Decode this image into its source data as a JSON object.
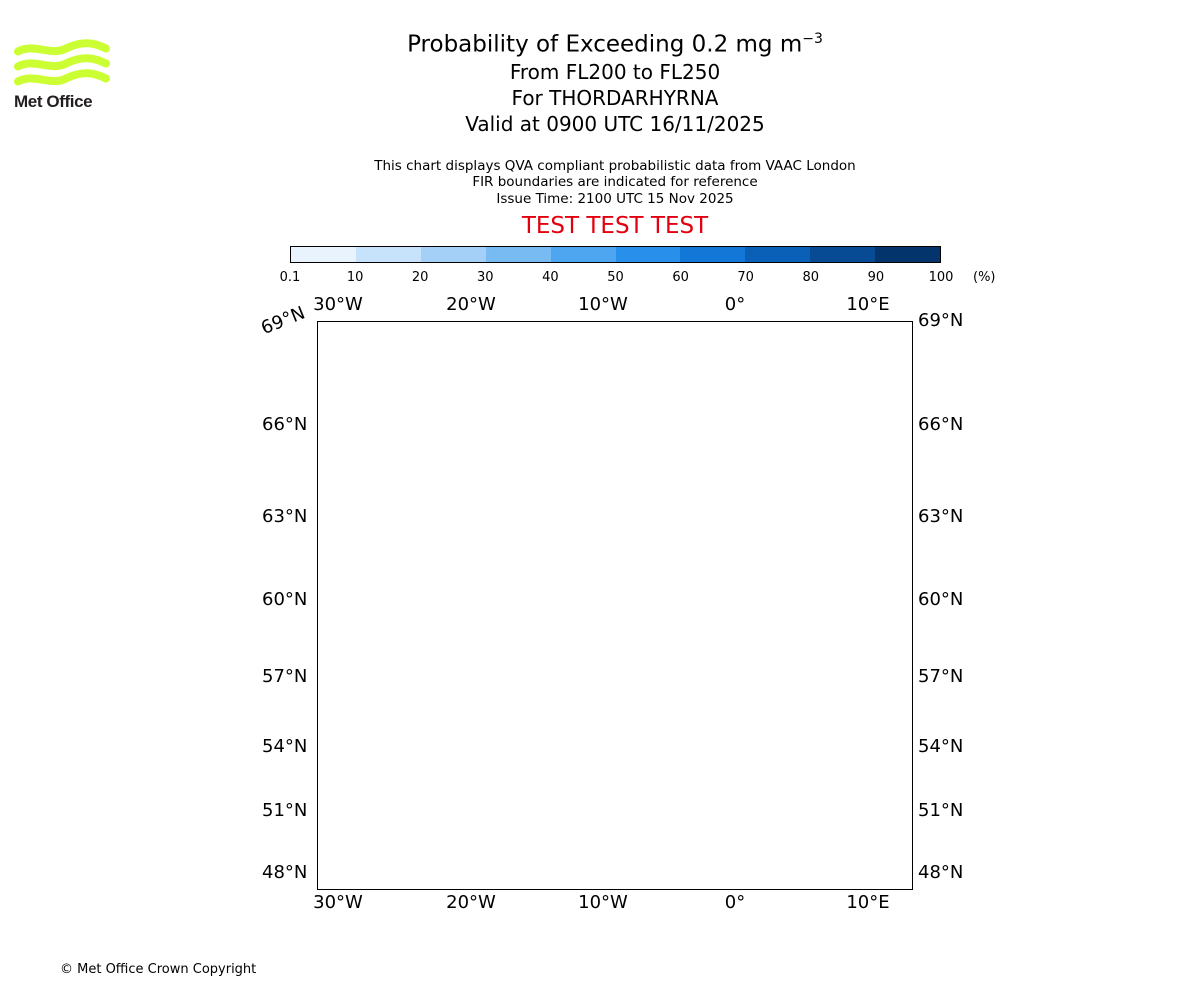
{
  "logo": {
    "text": "Met Office",
    "color": "#ccff33"
  },
  "header": {
    "title_prefix": "Probability of Exceeding 0.2 mg m",
    "title_exponent": "−3",
    "level_range": "From FL200 to FL250",
    "volcano": "For THORDARHYRNA",
    "valid_time": "Valid at 0900 UTC 16/11/2025"
  },
  "notes": {
    "line1": "This chart displays QVA compliant probabilistic data from VAAC London",
    "line2": "FIR boundaries are indicated for reference",
    "line3": "Issue Time: 2100 UTC 15 Nov 2025"
  },
  "test_banner": {
    "text": "TEST TEST TEST",
    "color": "#e2000f"
  },
  "colorbar": {
    "ticks": [
      "0.1",
      "10",
      "20",
      "30",
      "40",
      "50",
      "60",
      "70",
      "80",
      "90",
      "100"
    ],
    "unit": "(%)",
    "colors": [
      "#e8f3fd",
      "#c7e2fb",
      "#a4d0f7",
      "#78bbf3",
      "#4ea6f0",
      "#2890eb",
      "#1277d6",
      "#0a60b6",
      "#064b93",
      "#03346c"
    ]
  },
  "map": {
    "lon_labels": [
      "30°W",
      "20°W",
      "10°W",
      "0°",
      "10°E"
    ],
    "lat_labels_left": [
      "66°N",
      "63°N",
      "60°N",
      "57°N",
      "54°N",
      "51°N",
      "48°N"
    ],
    "lat_labels_right": [
      "69°N",
      "66°N",
      "63°N",
      "60°N",
      "57°N",
      "54°N",
      "51°N",
      "48°N"
    ],
    "corner_lat_label": "69°N",
    "volcano_name": "THORDARHYRNA"
  },
  "footer": {
    "copyright": "© Met Office Crown Copyright"
  }
}
